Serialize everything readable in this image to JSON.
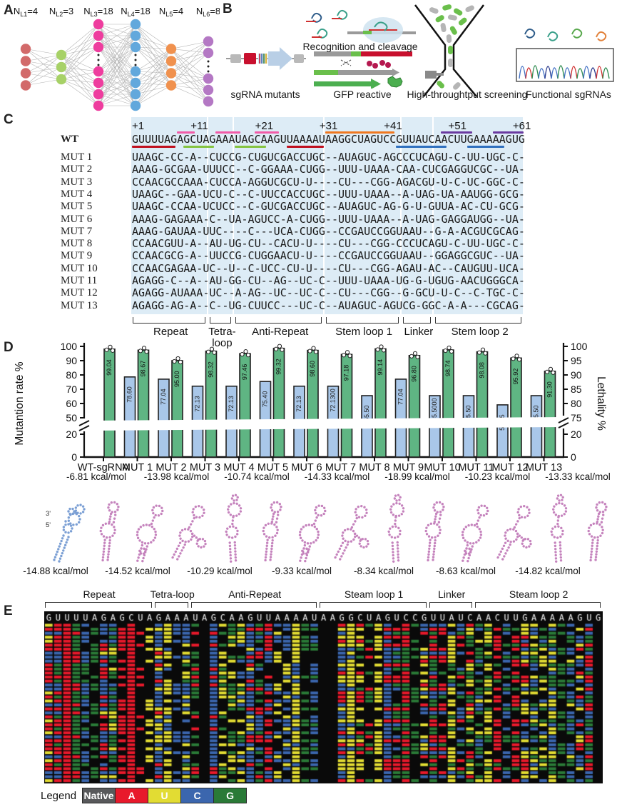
{
  "panel_a": {
    "label": "A",
    "layers": [
      {
        "name": "N",
        "sub": "L1",
        "value": "4",
        "color": "#d26a6a",
        "visible": 4,
        "dots": false
      },
      {
        "name": "N",
        "sub": "L2",
        "value": "3",
        "color": "#a7d167",
        "visible": 7,
        "dots": false
      },
      {
        "name": "N",
        "sub": "L3",
        "value": "18",
        "color": "#ee3d9e",
        "visible": 7,
        "dots": true
      },
      {
        "name": "N",
        "sub": "L4",
        "value": "18",
        "color": "#62a8dc",
        "visible": 7,
        "dots": true
      },
      {
        "name": "N",
        "sub": "L5",
        "value": "4",
        "color": "#f0914e",
        "visible": 4,
        "dots": false
      },
      {
        "name": "N",
        "sub": "L6",
        "value": "8",
        "color": "#b478c4",
        "visible": 5,
        "dots": true
      }
    ]
  },
  "panel_b": {
    "label": "B",
    "recognition_label": "Recognition and cleavage",
    "items": [
      {
        "caption": "sgRNA mutants"
      },
      {
        "caption": "GFP reactive"
      },
      {
        "caption": "High-throughtput screening"
      },
      {
        "caption": "Functional sgRNAs"
      }
    ]
  },
  "panel_c": {
    "label": "C",
    "wt_name": "WT",
    "wt_seq": "GUUUUAGAGCUAGAAAUAGCAAGUUAAAAUAAGGCUAGUCCGUUAUCAACUUGAAAAAGUG",
    "position_marks": [
      {
        "text": "+1",
        "at": 0
      },
      {
        "text": "+11",
        "at": 10
      },
      {
        "text": "+21",
        "at": 20
      },
      {
        "text": "+31",
        "at": 30
      },
      {
        "text": "+41",
        "at": 40
      },
      {
        "text": "+51",
        "at": 50
      },
      {
        "text": "+61",
        "at": 60
      }
    ],
    "overlines": [
      {
        "start": 7,
        "end": 9,
        "color": "#f25ba8"
      },
      {
        "start": 13,
        "end": 16,
        "color": "#f25ba8"
      },
      {
        "start": 19,
        "end": 22,
        "color": "#f25ba8"
      },
      {
        "start": 30,
        "end": 40,
        "color": "#f07820"
      },
      {
        "start": 48,
        "end": 52,
        "color": "#6a3aa0"
      },
      {
        "start": 56,
        "end": 60,
        "color": "#6a3aa0"
      }
    ],
    "underlines": [
      {
        "start": 0,
        "end": 6,
        "color": "#c00f1e"
      },
      {
        "start": 8,
        "end": 12,
        "color": "#85c440"
      },
      {
        "start": 16,
        "end": 20,
        "color": "#85c440"
      },
      {
        "start": 24,
        "end": 29,
        "color": "#c00f1e"
      },
      {
        "start": 41,
        "end": 48,
        "color": "#2f6fbe"
      },
      {
        "start": 52,
        "end": 57,
        "color": "#2f6fbe"
      }
    ],
    "mutants": [
      {
        "name": "MUT 1",
        "seq": "UAAGC-CC-A--CUCCG-CUGUCGACCUGC--AUAGUC-AGCCCUCAGU-C-UU-UGC-C-"
      },
      {
        "name": "MUT 2",
        "seq": "AAAG-GCGAA-UUUCC--C-GGAAA-CUGG--UUU-UAAA-CAA-CUCGAGGUCGC--UA-"
      },
      {
        "name": "MUT 3",
        "seq": "CCAACGCCAAA-CUCCA-AGGUCGCU-U----CU---CGG-AGACGU-U-C-UC-GGC-C-"
      },
      {
        "name": "MUT 4",
        "seq": "UAAGC--GAA-UCU-C--C-UUCCACCUGC--UUU-UAAA--A-UAG-UA-AAUGG-GCG-"
      },
      {
        "name": "MUT 5",
        "seq": "UAAGC-CCAA-UCUCC--C-GUCGACCUGC--AUAGUC-AG-G-U-GUUA-AC-CU-GCG-"
      },
      {
        "name": "MUT 6",
        "seq": "AAAG-GAGAAA-C--UA-AGUCC-A-CUGG--UUU-UAAA--A-UAG-GAGGAUGG--UA-"
      },
      {
        "name": "MUT 7",
        "seq": "AAAG-GAUAA-UUC----C---UCA-CUGG--CCGAUCCGGUAAU--G-A-ACGUCGCAG-"
      },
      {
        "name": "MUT 8",
        "seq": "CCAACGUU-A--AU-UG-CU--CACU-U----CU---CGG-CCCUCAGU-C-UU-UGC-C-"
      },
      {
        "name": "MUT 9",
        "seq": "CCAACGCG-A--UUCCG-CUGGAACU-U----CCGAUCCGGUAAU--GGAGGCGUC--UA-"
      },
      {
        "name": "MUT 10",
        "seq": "CCAACGAGAA-UC--U--C-UCC-CU-U----CU---CGG-AGAU-AC--CAUGUU-UCA-"
      },
      {
        "name": "MUT 11",
        "seq": "AGAGG-C--A--AU-GG-CU--AG--UC-C--UUU-UAAA-UG-G-UGUG-AACUGGGCA-"
      },
      {
        "name": "MUT 12",
        "seq": "AGAGG-AUAAA-UC--A-AG--UC--UC-C--CU---CGG--G-GCU-U-C--C-TGC-C-"
      },
      {
        "name": "MUT 13",
        "seq": "AGAGG-AG-A--C--UG-CUUCC---UC-C--AUAGUC-AGUCG-GGC-A-A---CGCAG-"
      }
    ],
    "regions": [
      {
        "label": "Repeat",
        "start": 0,
        "end": 11
      },
      {
        "label": "Tetra-\nloop",
        "start": 12,
        "end": 15
      },
      {
        "label": "Anti-Repeat",
        "start": 16,
        "end": 29
      },
      {
        "label": "Stem loop 1",
        "start": 30,
        "end": 41
      },
      {
        "label": "Linker",
        "start": 42,
        "end": 46
      },
      {
        "label": "Stem loop 2",
        "start": 47,
        "end": 60
      }
    ]
  },
  "panel_d": {
    "label": "D",
    "left_axis": {
      "title": "Mutantion rate %",
      "ticks": [
        100,
        90,
        80,
        70,
        60,
        50,
        20,
        0
      ],
      "break_between": [
        50,
        20
      ]
    },
    "right_axis": {
      "title": "Lethality %",
      "ticks": [
        100,
        95,
        90,
        85,
        80,
        75,
        20,
        0
      ],
      "break_between": [
        75,
        20
      ]
    },
    "chart_data": {
      "type": "bar",
      "categories": [
        "WT-sgRNA",
        "MUT 1",
        "MUT 2",
        "MUT 3",
        "MUT 4",
        "MUT 5",
        "MUT 6",
        "MUT 7",
        "MUT 8",
        "MUT 9",
        "MUT 10",
        "MUT 11",
        "MUT 12",
        "MUT 13"
      ],
      "series": [
        {
          "name": "Mutation rate %",
          "axis": "left",
          "color": "#a9c7e9",
          "values": [
            null,
            78.6,
            77.04,
            72.13,
            72.13,
            75.4,
            72.13,
            72.13,
            65.5,
            77.04,
            65.5,
            65.5,
            59.05,
            65.5
          ],
          "labels": [
            "",
            "78.60",
            "77.04",
            "72.13",
            "72.13",
            "75.40",
            "72.13",
            "72.1300",
            "65.50",
            "77.04",
            "65.5000",
            "65.50",
            "59.05",
            "65.50"
          ]
        },
        {
          "name": "Lethality %",
          "axis": "right",
          "color": "#5fb583",
          "values": [
            99.04,
            98.67,
            95.0,
            98.32,
            97.46,
            99.32,
            98.6,
            97.18,
            99.14,
            96.8,
            98.74,
            98.08,
            95.92,
            91.3
          ],
          "labels": [
            "99.04",
            "98.67",
            "95.00",
            "98.32",
            "97.46",
            "99.32",
            "98.60",
            "97.18",
            "99.14",
            "96.80",
            "98.74",
            "98.08",
            "95.92",
            "91.30"
          ]
        }
      ],
      "ylim_left": [
        0,
        100
      ],
      "ylim_right": [
        0,
        100
      ],
      "grid": false,
      "legend_position": "none"
    },
    "energies_row1": [
      "-6.81 kcal/mol",
      "-13.98 kcal/mol",
      "-10.74 kcal/mol",
      "-14.33 kcal/mol",
      "-18.99 kcal/mol",
      "-10.23 kcal/mol",
      "-13.33 kcal/mol"
    ],
    "energies_row2": [
      "-14.88 kcal/mol",
      "-14.52 kcal/mol",
      "-10.29 kcal/mol",
      "-9.33 kcal/mol",
      "-8.34 kcal/mol",
      "-8.63 kcal/mol",
      "-14.82 kcal/mol"
    ],
    "structure_end_labels": {
      "three_prime": "3'",
      "five_prime": "5'"
    },
    "structure_colors": {
      "wt": "#7b9fd4",
      "mutant": "#c583bd"
    }
  },
  "panel_e": {
    "label": "E",
    "regions": [
      {
        "label": "Repeat",
        "start": 0,
        "end": 11
      },
      {
        "label": "Tetra-loop",
        "start": 12,
        "end": 15
      },
      {
        "label": "Anti-Repeat",
        "start": 16,
        "end": 29
      },
      {
        "label": "Steam loop 1",
        "start": 30,
        "end": 41
      },
      {
        "label": "Linker",
        "start": 42,
        "end": 46
      },
      {
        "label": "Steam loop 2",
        "start": 47,
        "end": 60
      }
    ],
    "wt_seq": "GUUUUAGAGCUAGAAAUAGCAAGUUAAAAUAAGGCUAGUCCGUUAUCAACUUGAAAAAGUG",
    "base_colors": {
      "A": "#e8192b",
      "U": "#e2dc33",
      "C": "#3b66ae",
      "G": "#2a7a37",
      "native": "#0a0a0a"
    },
    "row_order": [
      1,
      2,
      3,
      4,
      5,
      6,
      7,
      8,
      9,
      10,
      11,
      12,
      13,
      6,
      11,
      3,
      9,
      1,
      13,
      5,
      10,
      2,
      8,
      12,
      4,
      7,
      12,
      5,
      9,
      2,
      13,
      7,
      1,
      10,
      4,
      11,
      6,
      3,
      8,
      5
    ],
    "legend_title": "Legend",
    "legend": [
      {
        "label": "Native",
        "color": "#58595b"
      },
      {
        "label": "A",
        "color": "#e8192b"
      },
      {
        "label": "U",
        "color": "#e2dc33"
      },
      {
        "label": "C",
        "color": "#3b66ae"
      },
      {
        "label": "G",
        "color": "#2a7a37"
      }
    ]
  }
}
